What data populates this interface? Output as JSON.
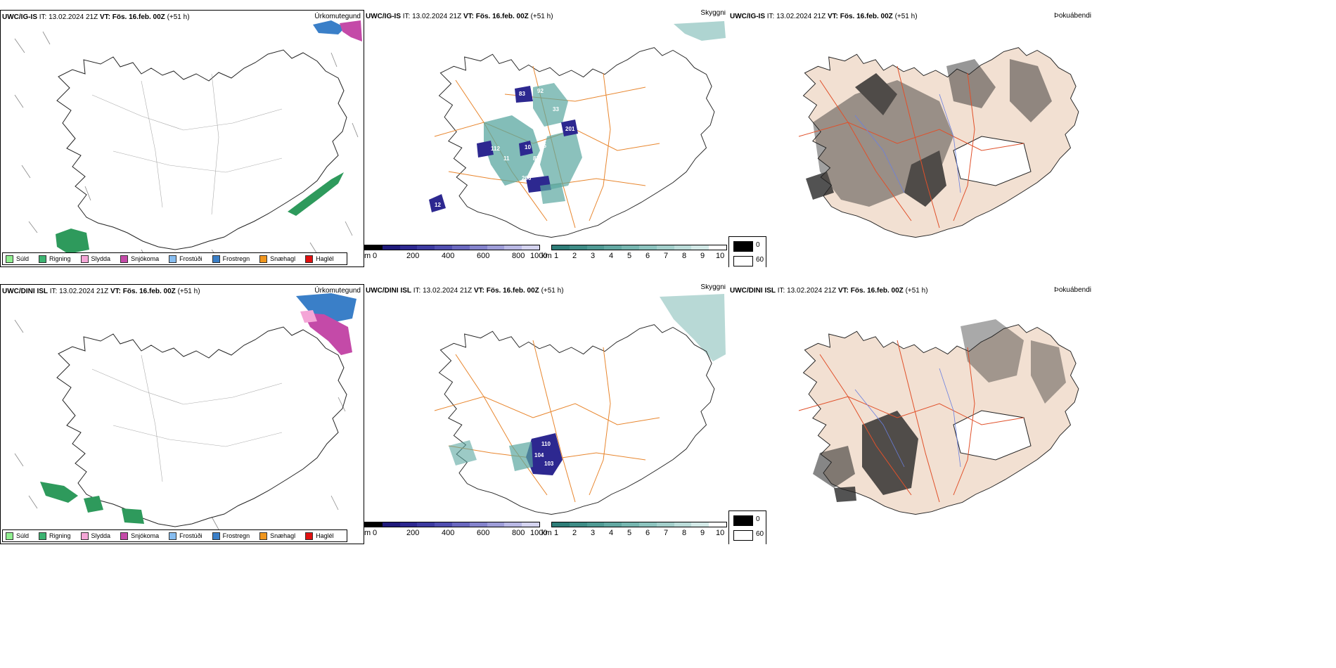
{
  "rows": [
    {
      "model": "UWC/IG-IS",
      "it_label": "IT:",
      "it_value": "13.02.2024 21Z",
      "vt_label": "VT:",
      "vt_value": "Fös. 16.feb. 00Z",
      "lead": "(+51 h)"
    },
    {
      "model": "UWC/DINI ISL",
      "it_label": "IT:",
      "it_value": "13.02.2024 21Z",
      "vt_label": "VT:",
      "vt_value": "Fös. 16.feb. 00Z",
      "lead": "(+51 h)"
    }
  ],
  "panel_titles": {
    "precip": "Úrkomutegund",
    "cloud": "Skyggni",
    "fog": "Þokuábendi"
  },
  "precip_legend": [
    {
      "label": "Súld",
      "color": "#90ee90"
    },
    {
      "label": "Rigning",
      "color": "#3cb371"
    },
    {
      "label": "Slydda",
      "color": "#f4a6d7"
    },
    {
      "label": "Snjókoma",
      "color": "#c44aa8"
    },
    {
      "label": "Frostúði",
      "color": "#87bdf0"
    },
    {
      "label": "Frostregn",
      "color": "#3a7fc8"
    },
    {
      "label": "Snæhagl",
      "color": "#f0961e"
    },
    {
      "label": "Haglél",
      "color": "#e01010"
    }
  ],
  "cloud_base": {
    "unit": "m",
    "ticks": [
      "0",
      "200",
      "400",
      "600",
      "800",
      "1000"
    ],
    "colors": [
      "#000000",
      "#1f1a7a",
      "#2d2890",
      "#3c3aa0",
      "#504eb0",
      "#6a68bf",
      "#8483cc",
      "#9e9dd8",
      "#b9b8e4",
      "#d4d3ef"
    ]
  },
  "visibility": {
    "unit": "km",
    "ticks": [
      "1",
      "2",
      "3",
      "4",
      "5",
      "6",
      "7",
      "8",
      "9",
      "10"
    ],
    "colors": [
      "#2e7d78",
      "#3e8c86",
      "#4f9a94",
      "#62a8a2",
      "#76b6b0",
      "#8cc3be",
      "#a3cfcb",
      "#bbdcd9",
      "#d3e9e7",
      "#ffffff"
    ]
  },
  "fog_legend": [
    {
      "label": "0",
      "color": "#000000"
    },
    {
      "label": "60",
      "color": "#ffffff"
    }
  ],
  "cloud_labels_top": [
    "83",
    "92",
    "33",
    "33",
    "201",
    "95",
    "87",
    "10",
    "11",
    "206",
    "12",
    "112"
  ],
  "cloud_labels_bottom": [
    "110",
    "104",
    "103"
  ],
  "colors": {
    "roads": "#e8862e",
    "roads_fog": "#e0502a",
    "rivers": "#6a7fe0",
    "land_fog": "#f2e0d2",
    "rain": "#2e9a5c",
    "frostregn": "#3a7fc8",
    "snjokoma": "#c44aa8"
  }
}
